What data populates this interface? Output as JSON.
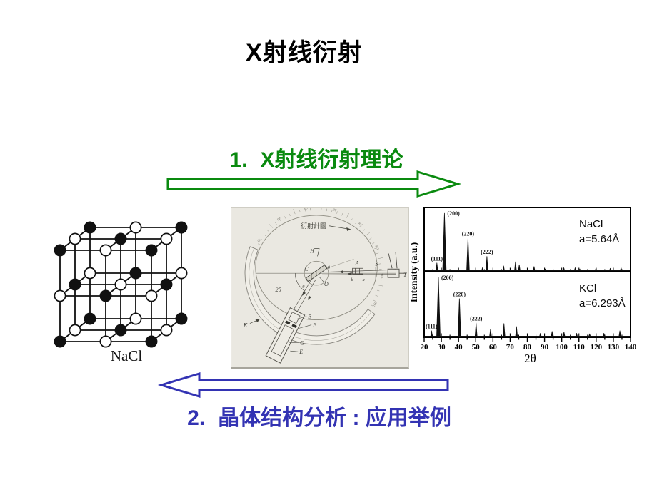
{
  "title": "X射线衍射",
  "sections": [
    {
      "number": "1.",
      "label": "X射线衍射理论"
    },
    {
      "number": "2.",
      "label": "晶体结构分析 : 应用举例"
    }
  ],
  "colors": {
    "section1_green": "#0a8a0f",
    "section2_blue": "#3333b3",
    "scan_background": "#eae8e1",
    "ink": "#111111"
  },
  "figures": {
    "crystal": {
      "caption": "NaCl"
    },
    "diffractometer": {
      "caption": "衍射計圖",
      "labels": {
        "specimen_circle": "H",
        "center": "C",
        "axis": "O",
        "two_theta": "2θ",
        "theta_upper": "θ",
        "theta_lower": "θ",
        "slit_a": "A",
        "slit_s": "S",
        "tube": "T",
        "slit_b_small": "b",
        "slit_a_small": "a",
        "detector_b": "B",
        "detector_f": "F",
        "detector_g": "G",
        "detector_e": "E",
        "scale_k": "K"
      },
      "scale_numbers": [
        "20",
        "40",
        "60",
        "80",
        "100",
        "120",
        "140",
        "160"
      ]
    }
  },
  "chart_data": [
    {
      "type": "line",
      "title": "NaCl",
      "annotation": "a=5.64Å",
      "xlabel": "2θ",
      "ylabel": "Intensity (a.u.)",
      "xlim": [
        20,
        140
      ],
      "xtick_step": 10,
      "minor_tick_step": 5,
      "legend_position": "inside-top-right",
      "grid": false,
      "peaks": [
        {
          "x": 27.4,
          "h": 0.13,
          "label": "(111)"
        },
        {
          "x": 31.8,
          "h": 0.97,
          "label": "(200)"
        },
        {
          "x": 45.5,
          "h": 0.55,
          "label": "(220)"
        },
        {
          "x": 53.9,
          "h": 0.05
        },
        {
          "x": 56.5,
          "h": 0.24,
          "label": "(222)"
        },
        {
          "x": 66.2,
          "h": 0.08
        },
        {
          "x": 73.1,
          "h": 0.15
        },
        {
          "x": 75.3,
          "h": 0.1
        },
        {
          "x": 83.9,
          "h": 0.07
        },
        {
          "x": 90.4,
          "h": 0.03
        },
        {
          "x": 101.2,
          "h": 0.05
        },
        {
          "x": 107.8,
          "h": 0.05
        },
        {
          "x": 110.5,
          "h": 0.03
        },
        {
          "x": 119.9,
          "h": 0.045
        },
        {
          "x": 128.2,
          "h": 0.04
        },
        {
          "x": 134.5,
          "h": 0.05
        }
      ]
    },
    {
      "type": "line",
      "title": "KCl",
      "annotation": "a=6.293Å",
      "xlabel": "2θ",
      "ylabel": "Intensity (a.u.)",
      "xlim": [
        20,
        140
      ],
      "xtick_step": 10,
      "minor_tick_step": 5,
      "legend_position": "inside-top-right",
      "grid": false,
      "peaks": [
        {
          "x": 24.3,
          "h": 0.09,
          "label": "(111)"
        },
        {
          "x": 28.3,
          "h": 0.97,
          "label": "(200)"
        },
        {
          "x": 40.5,
          "h": 0.62,
          "label": "(220)"
        },
        {
          "x": 50.2,
          "h": 0.22,
          "label": "(222)"
        },
        {
          "x": 58.6,
          "h": 0.12
        },
        {
          "x": 66.4,
          "h": 0.21
        },
        {
          "x": 73.7,
          "h": 0.16
        },
        {
          "x": 87.6,
          "h": 0.05
        },
        {
          "x": 94.4,
          "h": 0.08
        },
        {
          "x": 101.3,
          "h": 0.07
        },
        {
          "x": 108.6,
          "h": 0.05
        },
        {
          "x": 116.2,
          "h": 0.04
        },
        {
          "x": 124.5,
          "h": 0.05
        },
        {
          "x": 133.8,
          "h": 0.09
        }
      ]
    }
  ]
}
